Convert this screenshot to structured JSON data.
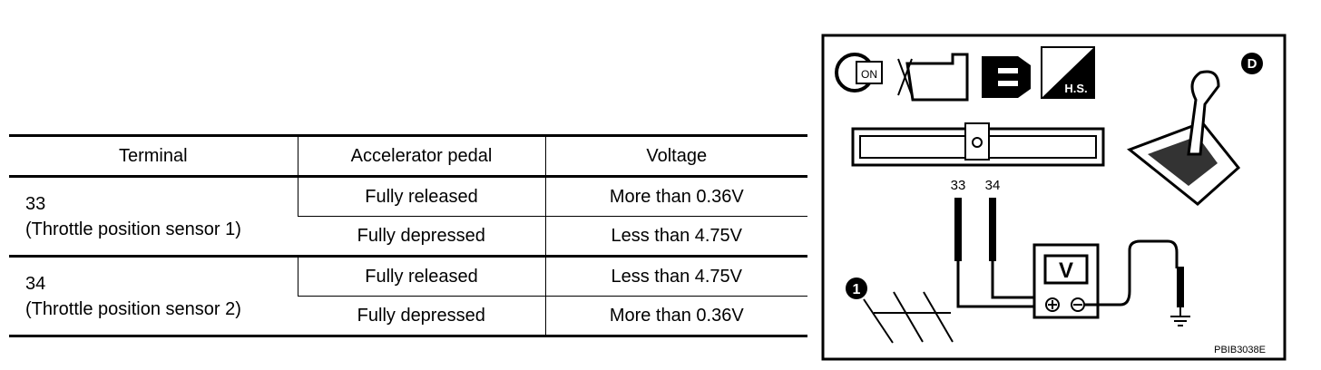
{
  "table": {
    "header": [
      "Terminal",
      "Accelerator pedal",
      "Voltage"
    ],
    "groups": [
      {
        "terminal": "33",
        "sensor": "(Throttle position sensor 1)",
        "rows": [
          [
            "Fully released",
            "More than 0.36V"
          ],
          [
            "Fully depressed",
            "Less than 4.75V"
          ]
        ]
      },
      {
        "terminal": "34",
        "sensor": "(Throttle position sensor 2)",
        "rows": [
          [
            "Fully released",
            "Less than 4.75V"
          ],
          [
            "Fully depressed",
            "More than 0.36V"
          ]
        ]
      }
    ]
  },
  "diagram": {
    "icon_key": "ON",
    "icon_hs": "H.S.",
    "shift_label": "D",
    "pin_a": "33",
    "pin_b": "34",
    "meter": "V",
    "ground_label": "1",
    "code": "PBIB3038E"
  }
}
